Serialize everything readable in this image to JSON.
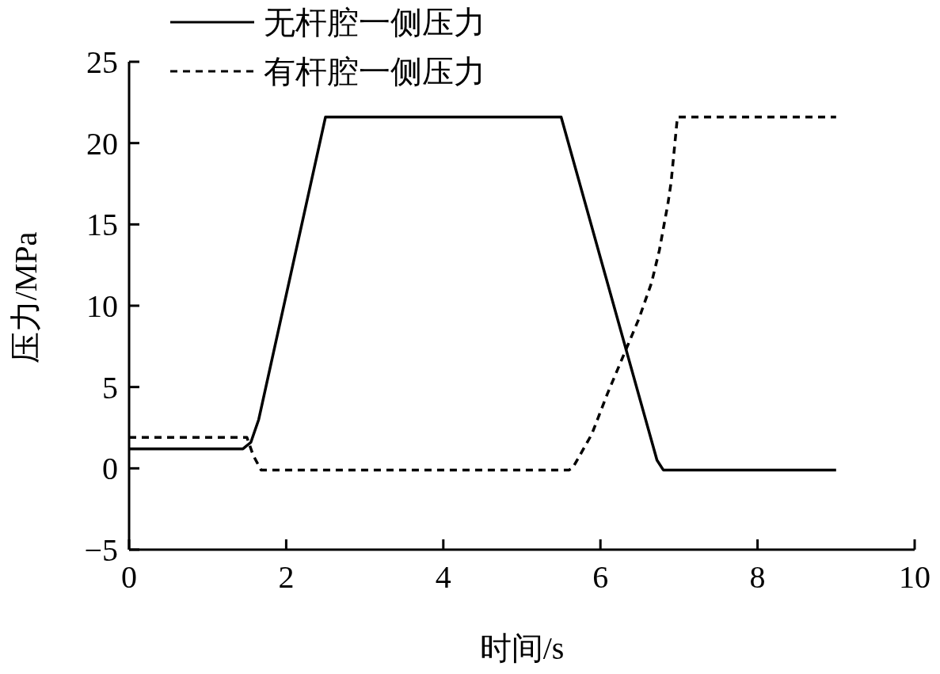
{
  "chart_data": {
    "type": "line",
    "xlabel": "时间/s",
    "ylabel": "压力/MPa",
    "xlim": [
      0,
      10
    ],
    "ylim": [
      -5,
      25
    ],
    "xticks": [
      0,
      2,
      4,
      6,
      8,
      10
    ],
    "yticks": [
      {
        "value": -5,
        "label": "−5"
      },
      0,
      5,
      10,
      15,
      20,
      25
    ],
    "grid": false,
    "legend": "top left",
    "marker": "none",
    "series": [
      {
        "name": "无杆腔一侧压力",
        "color": "#000000",
        "line_style": "solid",
        "x": [
          0,
          1.45,
          1.55,
          1.65,
          2.5,
          5.5,
          6.72,
          6.8,
          9
        ],
        "values": [
          1.2,
          1.2,
          1.6,
          3,
          21.6,
          21.6,
          0.5,
          -0.1,
          -0.1
        ]
      },
      {
        "name": "有杆腔一侧压力",
        "color": "#000000",
        "line_style": "dashed",
        "x": [
          0,
          1.5,
          1.58,
          1.68,
          5.6,
          5.65,
          5.89,
          6.09,
          6.29,
          6.49,
          6.65,
          6.75,
          6.86,
          6.9,
          6.98,
          9
        ],
        "values": [
          1.9,
          1.9,
          0.8,
          -0.1,
          -0.1,
          0.05,
          2.1,
          4.6,
          6.9,
          9.2,
          11.4,
          13.4,
          16.3,
          17.6,
          21.6,
          21.6
        ]
      }
    ]
  }
}
